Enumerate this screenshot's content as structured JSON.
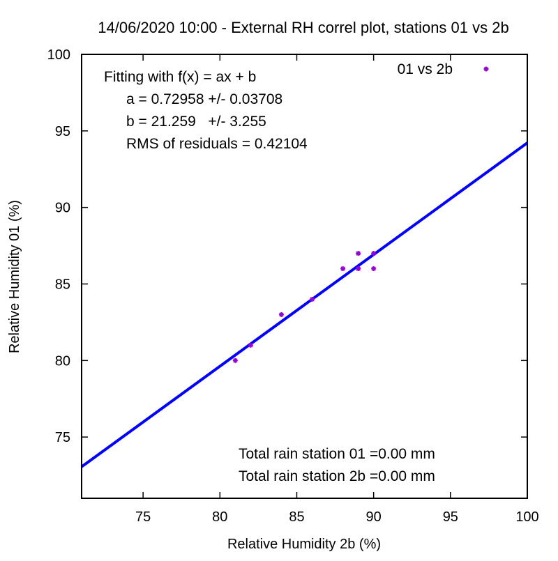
{
  "chart_data": {
    "type": "scatter",
    "title": "14/06/2020 10:00 - External RH correl plot, stations 01 vs 2b",
    "xlabel": "Relative Humidity 2b (%)",
    "ylabel": "Relative Humidity 01 (%)",
    "xlim": [
      71,
      100
    ],
    "ylim": [
      71,
      100
    ],
    "xticks": [
      "75",
      "80",
      "85",
      "90",
      "95",
      "100"
    ],
    "xtick_values": [
      75,
      80,
      85,
      90,
      95,
      100
    ],
    "yticks": [
      "75",
      "80",
      "85",
      "90",
      "95",
      "100"
    ],
    "ytick_values": [
      75,
      80,
      85,
      90,
      95,
      100
    ],
    "grid": false,
    "legend_position": "top-right",
    "series": [
      {
        "name": "01 vs 2b",
        "color": "#9400d3",
        "x": [
          81,
          82,
          84,
          86,
          88,
          89,
          89,
          89,
          90,
          90
        ],
        "y": [
          80,
          81,
          83,
          84,
          86,
          86,
          86,
          87,
          86,
          87
        ]
      }
    ],
    "fit": {
      "a": 0.72958,
      "b": 21.259,
      "color": "#0000ff"
    },
    "annotations": {
      "fit_heading": "Fitting with f(x) = ax + b",
      "fit_a": "a = 0.72958 +/- 0.03708",
      "fit_b": "b = 21.259   +/- 3.255",
      "fit_rms": "RMS of residuals = 0.42104",
      "rain_01": "Total rain station 01 =0.00 mm",
      "rain_2b": "Total rain station 2b =0.00 mm"
    }
  }
}
